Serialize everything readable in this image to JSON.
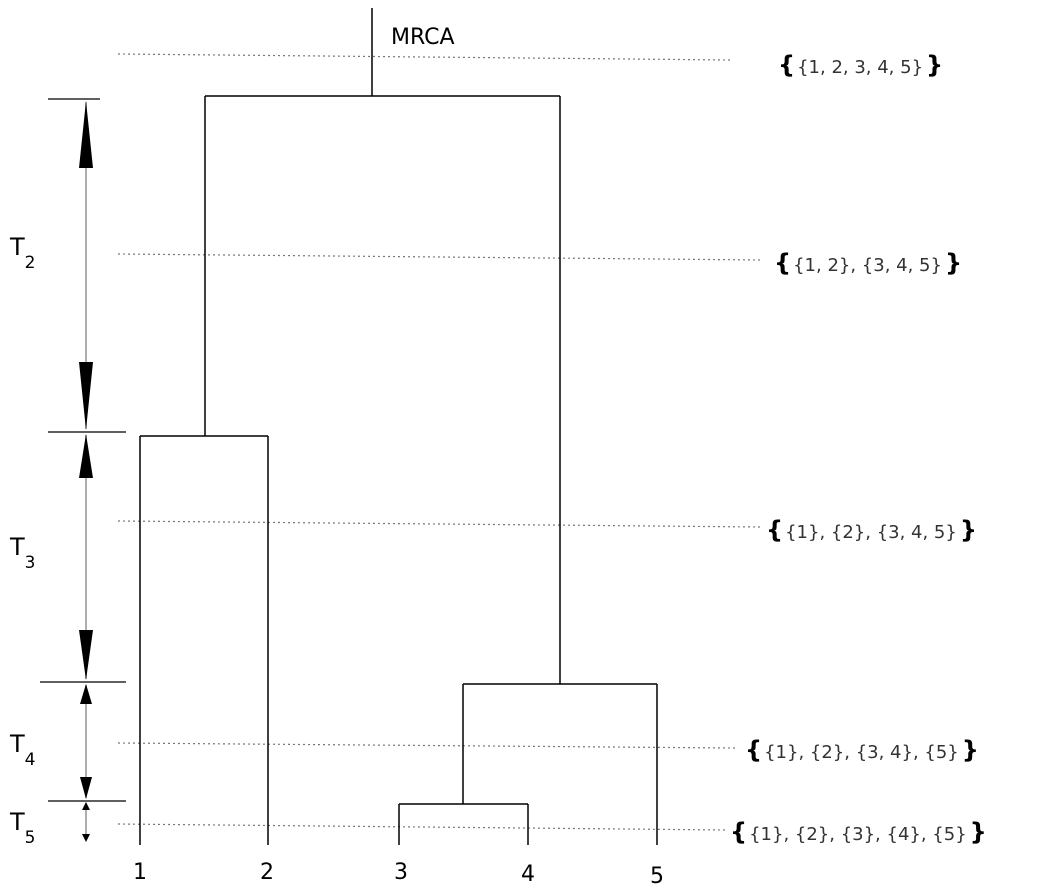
{
  "root_label": "MRCA",
  "leaves": [
    "1",
    "2",
    "3",
    "4",
    "5"
  ],
  "intervals": [
    {
      "letter": "T",
      "sub": "2"
    },
    {
      "letter": "T",
      "sub": "3"
    },
    {
      "letter": "T",
      "sub": "4"
    },
    {
      "letter": "T",
      "sub": "5"
    }
  ],
  "partitions": [
    {
      "open": "{",
      "text": "{1, 2, 3, 4, 5}",
      "close": "}"
    },
    {
      "open": "{",
      "text": "{1, 2}, {3, 4, 5}",
      "close": "}"
    },
    {
      "open": "{",
      "text": "{1}, {2}, {3, 4, 5}",
      "close": "}"
    },
    {
      "open": "{",
      "text": "{1}, {2}, {3, 4}, {5}",
      "close": "}"
    },
    {
      "open": "{",
      "text": "{1}, {2}, {3}, {4}, {5}",
      "close": "}"
    }
  ]
}
